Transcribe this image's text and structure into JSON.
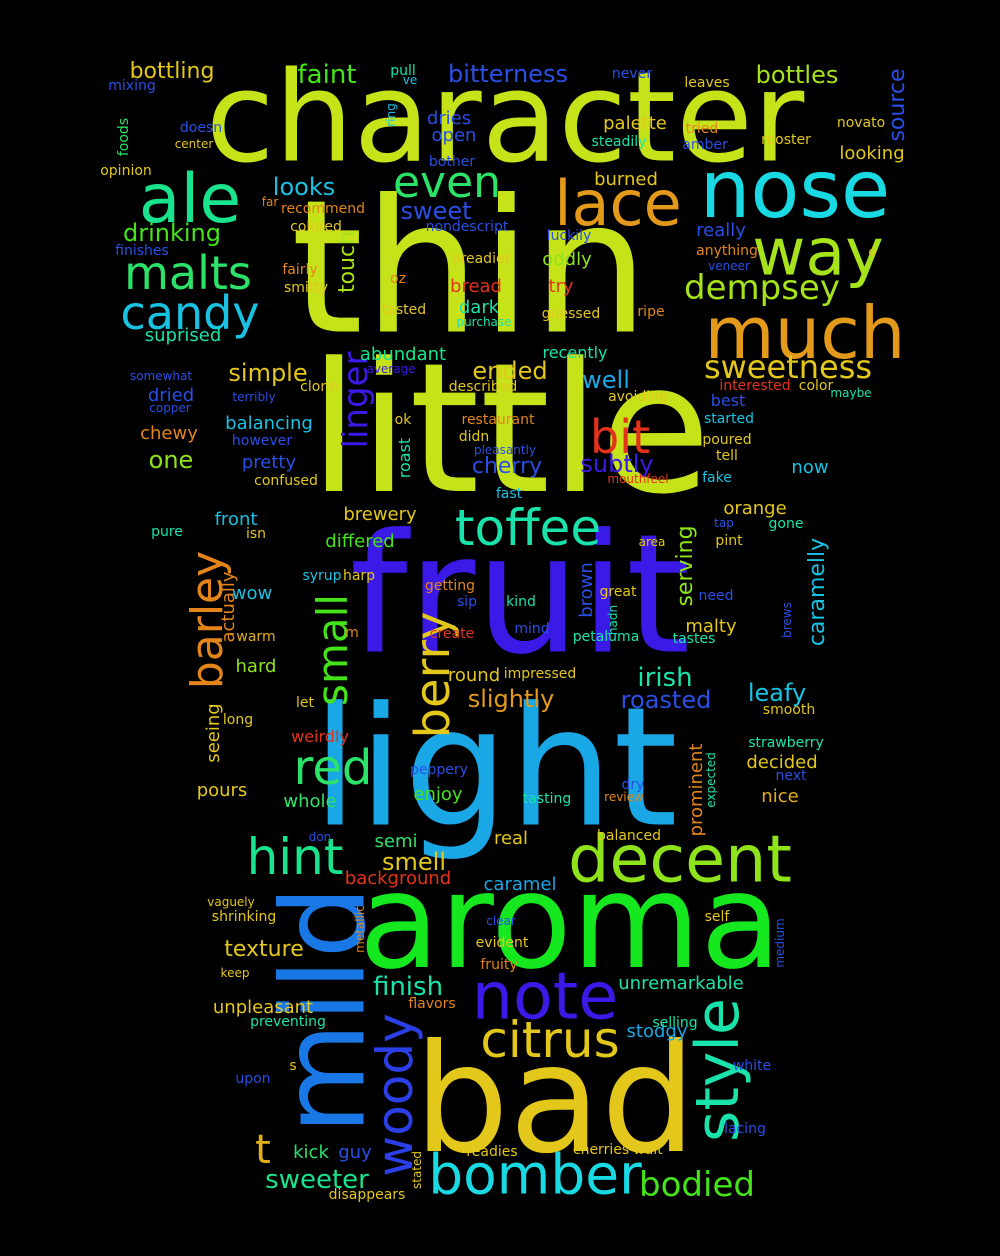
{
  "words": [
    {
      "text": "character",
      "color": "#c6e31a"
    },
    {
      "text": "thin",
      "color": "#c6e31a"
    },
    {
      "text": "little",
      "color": "#c6e31a"
    },
    {
      "text": "fruit",
      "color": "#3b1ae8"
    },
    {
      "text": "light",
      "color": "#19a7e6"
    },
    {
      "text": "aroma",
      "color": "#16e820"
    },
    {
      "text": "bad",
      "color": "#e3c71a"
    },
    {
      "text": "mild",
      "color": "#1a78e6"
    },
    {
      "text": "nose",
      "color": "#19d9e3"
    },
    {
      "text": "much",
      "color": "#e39a1a"
    },
    {
      "text": "lace",
      "color": "#e39a1a"
    },
    {
      "text": "ale",
      "color": "#19e38c"
    },
    {
      "text": "way",
      "color": "#a6e31a"
    },
    {
      "text": "decent",
      "color": "#8ee31a"
    },
    {
      "text": "note",
      "color": "#3b1ae8"
    },
    {
      "text": "bomber",
      "color": "#19d9e3"
    },
    {
      "text": "citrus",
      "color": "#e3c71a"
    },
    {
      "text": "style",
      "color": "#19e3ab"
    },
    {
      "text": "woody",
      "color": "#2a3fe6"
    },
    {
      "text": "toffee",
      "color": "#19e3ab"
    },
    {
      "text": "malts",
      "color": "#2ce36a"
    },
    {
      "text": "candy",
      "color": "#19c2e3"
    },
    {
      "text": "even",
      "color": "#2ce36a"
    },
    {
      "text": "hint",
      "color": "#19e38c"
    },
    {
      "text": "red",
      "color": "#2ce36a"
    },
    {
      "text": "barley",
      "color": "#e3851a"
    },
    {
      "text": "berry",
      "color": "#e3c71a"
    },
    {
      "text": "small",
      "color": "#44e31a"
    },
    {
      "text": "bit",
      "color": "#e3331a"
    },
    {
      "text": "dempsey",
      "color": "#a6e31a"
    },
    {
      "text": "sweetness",
      "color": "#e3c71a"
    },
    {
      "text": "bodied",
      "color": "#44e31a"
    },
    {
      "text": "t",
      "color": "#e3b01a"
    },
    {
      "text": "sweeter",
      "color": "#19e38c"
    },
    {
      "text": "faint",
      "color": "#44e31a"
    },
    {
      "text": "bitterness",
      "color": "#2a4fe6"
    },
    {
      "text": "bottles",
      "color": "#a6e31a"
    },
    {
      "text": "bottling",
      "color": "#e3c71a"
    },
    {
      "text": "drinking",
      "color": "#44e31a"
    },
    {
      "text": "looks",
      "color": "#19c2e3"
    },
    {
      "text": "sweet",
      "color": "#2a4fe6"
    },
    {
      "text": "linger",
      "color": "#3b1ae8"
    },
    {
      "text": "touch",
      "color": "#a6e31a"
    },
    {
      "text": "simple",
      "color": "#e3c71a"
    },
    {
      "text": "ended",
      "color": "#e3c71a"
    },
    {
      "text": "well",
      "color": "#19a7e6"
    },
    {
      "text": "one",
      "color": "#8ee31a"
    },
    {
      "text": "subtly",
      "color": "#3b1ae8"
    },
    {
      "text": "cherry",
      "color": "#2a4fe6"
    },
    {
      "text": "irish",
      "color": "#19e3ab"
    },
    {
      "text": "leafy",
      "color": "#19c2e3"
    },
    {
      "text": "roasted",
      "color": "#2a4fe6"
    },
    {
      "text": "slightly",
      "color": "#e39a1a"
    },
    {
      "text": "serving",
      "color": "#8ee31a"
    },
    {
      "text": "caramelly",
      "color": "#19c2e3"
    },
    {
      "text": "finish",
      "color": "#19e3ab"
    },
    {
      "text": "smell",
      "color": "#e3c71a"
    },
    {
      "text": "texture",
      "color": "#e3c71a"
    },
    {
      "text": "balancing",
      "color": "#19c2e3"
    },
    {
      "text": "oddly",
      "color": "#8ee31a"
    },
    {
      "text": "dark",
      "color": "#19e3ab"
    },
    {
      "text": "abundant",
      "color": "#19e38c"
    },
    {
      "text": "really",
      "color": "#2a4fe6"
    },
    {
      "text": "best",
      "color": "#2a4fe6"
    },
    {
      "text": "orange",
      "color": "#e3c71a"
    },
    {
      "text": "malty",
      "color": "#e3c71a"
    },
    {
      "text": "round",
      "color": "#e3c71a"
    },
    {
      "text": "seeing",
      "color": "#e3c71a"
    },
    {
      "text": "unpleasant",
      "color": "#e3c71a"
    },
    {
      "text": "unremarkable",
      "color": "#19e3ab"
    },
    {
      "text": "caramel",
      "color": "#19a7e6"
    },
    {
      "text": "background",
      "color": "#e3331a"
    },
    {
      "text": "decided",
      "color": "#e3c71a"
    },
    {
      "text": "nice",
      "color": "#e3b01a"
    },
    {
      "text": "prominent",
      "color": "#e3851a"
    },
    {
      "text": "stodgy",
      "color": "#19a7e6"
    },
    {
      "text": "pretty",
      "color": "#2a4fe6"
    },
    {
      "text": "chewy",
      "color": "#e3851a"
    },
    {
      "text": "dried",
      "color": "#2a4fe6"
    },
    {
      "text": "front",
      "color": "#19c2e3"
    },
    {
      "text": "differed",
      "color": "#44e31a"
    },
    {
      "text": "brewery",
      "color": "#e3c71a"
    },
    {
      "text": "enjoy",
      "color": "#44e31a"
    },
    {
      "text": "semi",
      "color": "#2ce36a"
    },
    {
      "text": "real",
      "color": "#e3c71a"
    },
    {
      "text": "whole",
      "color": "#2ce36a"
    },
    {
      "text": "pours",
      "color": "#e3c71a"
    },
    {
      "text": "hard",
      "color": "#8ee31a"
    },
    {
      "text": "wow",
      "color": "#19c2e3"
    },
    {
      "text": "actually",
      "color": "#e3851a"
    },
    {
      "text": "kick",
      "color": "#2ce36a"
    },
    {
      "text": "guy",
      "color": "#2a4fe6"
    },
    {
      "text": "brown",
      "color": "#2a4fe6"
    },
    {
      "text": "source",
      "color": "#2a4fe6"
    },
    {
      "text": "looking",
      "color": "#e3c71a"
    },
    {
      "text": "burned",
      "color": "#e3c71a"
    },
    {
      "text": "palette",
      "color": "#e3c71a"
    },
    {
      "text": "dries",
      "color": "#2a4fe6"
    },
    {
      "text": "open",
      "color": "#2a4fe6"
    },
    {
      "text": "suprised",
      "color": "#19e3ab"
    },
    {
      "text": "bread",
      "color": "#e3331a"
    },
    {
      "text": "try",
      "color": "#e3331a"
    },
    {
      "text": "recently",
      "color": "#19e3ab"
    },
    {
      "text": "weirdly",
      "color": "#e3331a"
    },
    {
      "text": "faint2",
      "color": "#44e31a"
    },
    {
      "text": "never",
      "color": "#2a4fe6"
    },
    {
      "text": "pull",
      "color": "#19e3ab"
    },
    {
      "text": "mixing",
      "color": "#2a4fe6"
    },
    {
      "text": "foods",
      "color": "#2ce36a"
    },
    {
      "text": "doesn",
      "color": "#2a4fe6"
    },
    {
      "text": "center",
      "color": "#e3c71a"
    },
    {
      "text": "opinion",
      "color": "#e3c71a"
    },
    {
      "text": "far",
      "color": "#e3851a"
    },
    {
      "text": "recommend",
      "color": "#e3851a"
    },
    {
      "text": "colored",
      "color": "#e3c71a"
    },
    {
      "text": "finishes",
      "color": "#2a4fe6"
    },
    {
      "text": "fairly",
      "color": "#e3851a"
    },
    {
      "text": "smitty",
      "color": "#e3c71a"
    },
    {
      "text": "somewhat",
      "color": "#2a4fe6"
    },
    {
      "text": "copper",
      "color": "#2a4fe6"
    },
    {
      "text": "terribly",
      "color": "#2a4fe6"
    },
    {
      "text": "however",
      "color": "#2a4fe6"
    },
    {
      "text": "confused",
      "color": "#e3c71a"
    },
    {
      "text": "clone",
      "color": "#e3c71a"
    },
    {
      "text": "average",
      "color": "#3b1ae8"
    },
    {
      "text": "described",
      "color": "#e3c71a"
    },
    {
      "text": "restaurant",
      "color": "#e3851a"
    },
    {
      "text": "pleasantly",
      "color": "#2a4fe6"
    },
    {
      "text": "mouthfeel",
      "color": "#e3331a"
    },
    {
      "text": "interested",
      "color": "#e3331a"
    },
    {
      "text": "color",
      "color": "#e3c71a"
    },
    {
      "text": "maybe",
      "color": "#19e3ab"
    },
    {
      "text": "avoiding",
      "color": "#e3c71a"
    },
    {
      "text": "started",
      "color": "#19c2e3"
    },
    {
      "text": "poured",
      "color": "#e3c71a"
    },
    {
      "text": "tell",
      "color": "#e3c71a"
    },
    {
      "text": "fake",
      "color": "#19c2e3"
    },
    {
      "text": "now",
      "color": "#19c2e3"
    },
    {
      "text": "gone",
      "color": "#19e3ab"
    },
    {
      "text": "tap",
      "color": "#2a4fe6"
    },
    {
      "text": "pint",
      "color": "#e3c71a"
    },
    {
      "text": "area",
      "color": "#e3c71a"
    },
    {
      "text": "fast",
      "color": "#19c2e3"
    },
    {
      "text": "ring",
      "color": "#19c2e3"
    },
    {
      "text": "ve",
      "color": "#19c2e3"
    },
    {
      "text": "leaves",
      "color": "#e3c71a"
    },
    {
      "text": "tried",
      "color": "#e3851a"
    },
    {
      "text": "steadily",
      "color": "#19e3ab"
    },
    {
      "text": "amber",
      "color": "#2a4fe6"
    },
    {
      "text": "rooster",
      "color": "#e3c71a"
    },
    {
      "text": "novato",
      "color": "#e3c71a"
    },
    {
      "text": "bother",
      "color": "#2a4fe6"
    },
    {
      "text": "nondescript",
      "color": "#2a4fe6"
    },
    {
      "text": "luckily",
      "color": "#2a4fe6"
    },
    {
      "text": "anything",
      "color": "#e3851a"
    },
    {
      "text": "veneer",
      "color": "#2a4fe6"
    },
    {
      "text": "o",
      "color": "#e3c71a"
    },
    {
      "text": "breadier",
      "color": "#e3c71a"
    },
    {
      "text": "oz",
      "color": "#e3851a"
    },
    {
      "text": "tasted",
      "color": "#e3c71a"
    },
    {
      "text": "purchase",
      "color": "#19e3ab"
    },
    {
      "text": "guessed",
      "color": "#e3c71a"
    },
    {
      "text": "ripe",
      "color": "#e3851a"
    },
    {
      "text": "ok",
      "color": "#e3c71a"
    },
    {
      "text": "roast",
      "color": "#19e3ab"
    },
    {
      "text": "didn",
      "color": "#e3c71a"
    },
    {
      "text": "isn",
      "color": "#e3c71a"
    },
    {
      "text": "pure",
      "color": "#19e3ab"
    },
    {
      "text": "syrup",
      "color": "#19c2e3"
    },
    {
      "text": "harp",
      "color": "#e3c71a"
    },
    {
      "text": "getting",
      "color": "#e3851a"
    },
    {
      "text": "great",
      "color": "#e3c71a"
    },
    {
      "text": "sip",
      "color": "#2a4fe6"
    },
    {
      "text": "kind",
      "color": "#19e3ab"
    },
    {
      "text": "hadn",
      "color": "#19e3ab"
    },
    {
      "text": "need",
      "color": "#2a4fe6"
    },
    {
      "text": "brews",
      "color": "#2a4fe6"
    },
    {
      "text": "warm",
      "color": "#e3b01a"
    },
    {
      "text": "m",
      "color": "#e3851a"
    },
    {
      "text": "create",
      "color": "#e3331a"
    },
    {
      "text": "mind",
      "color": "#2a4fe6"
    },
    {
      "text": "petaluma",
      "color": "#19e3ab"
    },
    {
      "text": "tastes",
      "color": "#19e3ab"
    },
    {
      "text": "impressed",
      "color": "#e3c71a"
    },
    {
      "text": "long",
      "color": "#e3c71a"
    },
    {
      "text": "let",
      "color": "#e3c71a"
    },
    {
      "text": "smooth",
      "color": "#e3c71a"
    },
    {
      "text": "strawberry",
      "color": "#19e3ab"
    },
    {
      "text": "next",
      "color": "#2a4fe6"
    },
    {
      "text": "expected",
      "color": "#19e3ab"
    },
    {
      "text": "dry",
      "color": "#2a4fe6"
    },
    {
      "text": "review",
      "color": "#e3851a"
    },
    {
      "text": "peppery",
      "color": "#2a4fe6"
    },
    {
      "text": "tasting",
      "color": "#19e3ab"
    },
    {
      "text": "balanced",
      "color": "#e3c71a"
    },
    {
      "text": "don",
      "color": "#2a4fe6"
    },
    {
      "text": "vaguely",
      "color": "#e3c71a"
    },
    {
      "text": "shrinking",
      "color": "#e3c71a"
    },
    {
      "text": "metallic",
      "color": "#e3851a"
    },
    {
      "text": "keep",
      "color": "#e3c71a"
    },
    {
      "text": "evident",
      "color": "#e3c71a"
    },
    {
      "text": "clear",
      "color": "#2a4fe6"
    },
    {
      "text": "fruity",
      "color": "#e3851a"
    },
    {
      "text": "flavors",
      "color": "#e3851a"
    },
    {
      "text": "self",
      "color": "#e3c71a"
    },
    {
      "text": "medium",
      "color": "#2a4fe6"
    },
    {
      "text": "preventing",
      "color": "#19e3ab"
    },
    {
      "text": "selling",
      "color": "#19e3ab"
    },
    {
      "text": "white",
      "color": "#2a4fe6"
    },
    {
      "text": "upon",
      "color": "#2a4fe6"
    },
    {
      "text": "s",
      "color": "#e3c71a"
    },
    {
      "text": "lacing",
      "color": "#2a4fe6"
    },
    {
      "text": "readies",
      "color": "#e3c71a"
    },
    {
      "text": "stated",
      "color": "#e3c71a"
    },
    {
      "text": "cherries",
      "color": "#e3c71a"
    },
    {
      "text": "wait",
      "color": "#e3c71a"
    },
    {
      "text": "disappears",
      "color": "#e3c71a"
    }
  ]
}
